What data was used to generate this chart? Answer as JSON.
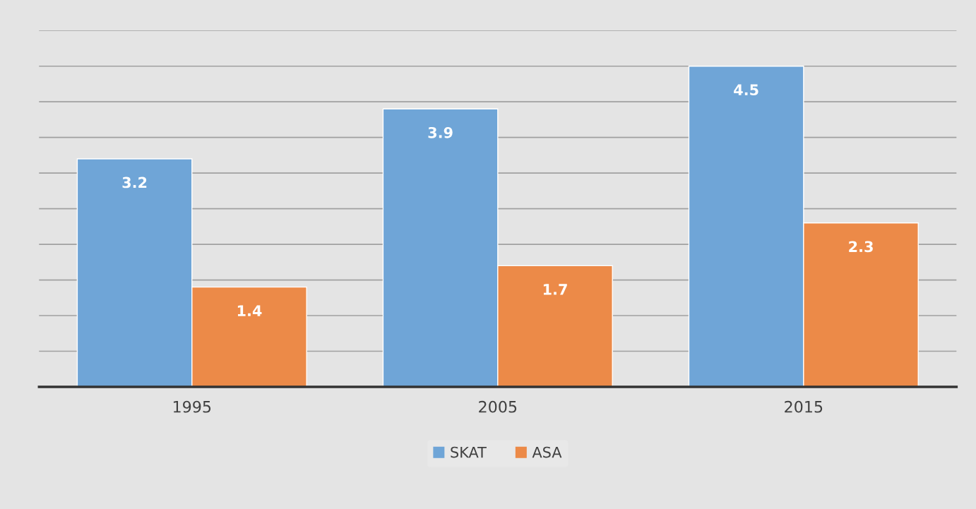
{
  "chart_data": {
    "type": "bar",
    "categories": [
      "1995",
      "2005",
      "2015"
    ],
    "series": [
      {
        "name": "SKAT",
        "color": "#6fa5d7",
        "values": [
          3.2,
          3.9,
          4.5
        ]
      },
      {
        "name": "ASA",
        "color": "#ec8a48",
        "values": [
          1.4,
          1.7,
          2.3
        ]
      }
    ],
    "data_labels": true,
    "ylim": [
      0,
      5
    ],
    "yticks": [
      {
        "value": 0,
        "label": null
      },
      {
        "value": 0.5,
        "label": null
      },
      {
        "value": 1,
        "label": null
      },
      {
        "value": 1.5,
        "label": null
      },
      {
        "value": 2,
        "label": null
      },
      {
        "value": 2.5,
        "label": null
      },
      {
        "value": 3,
        "label": null
      },
      {
        "value": 3.5,
        "label": null
      },
      {
        "value": 4,
        "label": null
      },
      {
        "value": 4.5,
        "label": null
      },
      {
        "value": 5,
        "label": null
      }
    ],
    "tick_labels": "x",
    "grid": "y",
    "legend": "bottom"
  }
}
